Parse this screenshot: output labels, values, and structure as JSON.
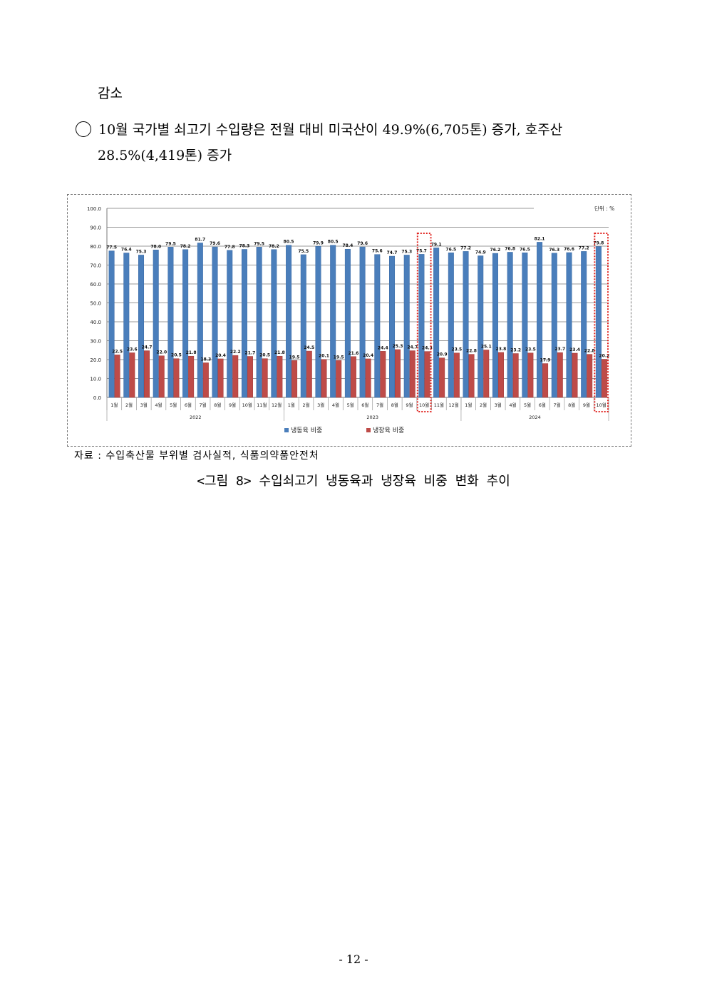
{
  "text": {
    "line1": "감소",
    "line2": "10월 국가별 쇠고기 수입량은 전월 대비 미국산이 49.9%(6,705톤) 증가, 호주산",
    "line3": "28.5%(4,419톤) 증가"
  },
  "source": "자료 : 수입축산물 부위별 검사실적, 식품의약품안전처",
  "caption": "<그림 8> 수입쇠고기 냉동육과 냉장육 비중 변화 추이",
  "page_number": "- 12 -",
  "chart_data": {
    "type": "bar",
    "unit_label": "단위 : %",
    "ylim": [
      0,
      100
    ],
    "yticks": [
      "0.0",
      "10.0",
      "20.0",
      "30.0",
      "40.0",
      "50.0",
      "60.0",
      "70.0",
      "80.0",
      "90.0",
      "100.0"
    ],
    "grid": true,
    "legend_position": "bottom",
    "categories": [
      "1월",
      "2월",
      "3월",
      "4월",
      "5월",
      "6월",
      "7월",
      "8월",
      "9월",
      "10월",
      "11월",
      "12월",
      "1월",
      "2월",
      "3월",
      "4월",
      "5월",
      "6월",
      "7월",
      "8월",
      "9월",
      "10월",
      "11월",
      "12월",
      "1월",
      "2월",
      "3월",
      "4월",
      "5월",
      "6월",
      "7월",
      "8월",
      "9월",
      "10월"
    ],
    "years": [
      {
        "label": "2022",
        "count": 12
      },
      {
        "label": "2023",
        "count": 12
      },
      {
        "label": "2024",
        "count": 10
      }
    ],
    "highlight_indices": [
      21,
      33
    ],
    "series": [
      {
        "name": "냉동육 비중",
        "color": "#4a7ebb",
        "values": [
          77.5,
          76.4,
          75.3,
          78.0,
          79.5,
          78.2,
          81.7,
          79.6,
          77.8,
          78.3,
          79.5,
          78.2,
          80.5,
          75.5,
          79.9,
          80.5,
          78.4,
          79.6,
          75.6,
          74.7,
          75.3,
          75.7,
          79.1,
          76.5,
          77.2,
          74.9,
          76.2,
          76.8,
          76.5,
          82.1,
          76.3,
          76.6,
          77.2,
          79.8
        ]
      },
      {
        "name": "냉장육 비중",
        "color": "#be4b48",
        "values": [
          22.5,
          23.6,
          24.7,
          22.0,
          20.5,
          21.8,
          18.3,
          20.4,
          22.2,
          21.7,
          20.5,
          21.8,
          19.5,
          24.5,
          20.1,
          19.5,
          21.6,
          20.4,
          24.4,
          25.3,
          24.7,
          24.3,
          20.9,
          23.5,
          22.8,
          25.1,
          23.8,
          23.2,
          23.5,
          17.9,
          23.7,
          23.4,
          22.8,
          20.2
        ]
      }
    ]
  }
}
